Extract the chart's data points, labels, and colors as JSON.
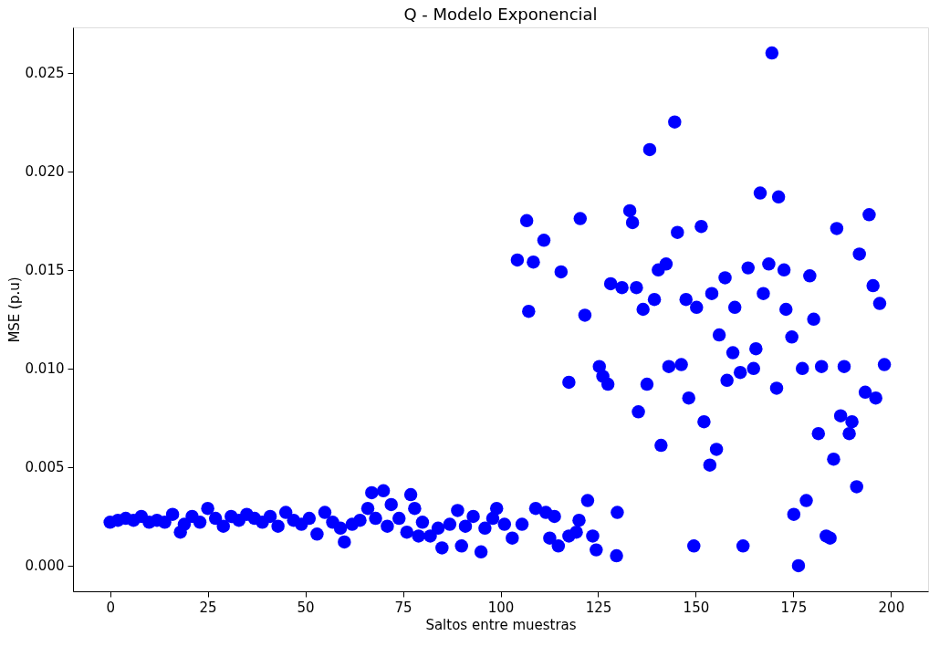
{
  "chart_data": {
    "type": "scatter",
    "title": "Q - Modelo Exponencial",
    "xlabel": "Saltos entre muestras",
    "ylabel": "MSE (p.u)",
    "xlim": [
      -9.5,
      209.5
    ],
    "ylim": [
      -0.0013,
      0.0273
    ],
    "xticks": [
      0,
      25,
      50,
      75,
      100,
      125,
      150,
      175,
      200
    ],
    "yticks": [
      {
        "value": 0,
        "label": "0.000"
      },
      {
        "value": 0.005,
        "label": "0.005"
      },
      {
        "value": 0.01,
        "label": "0.010"
      },
      {
        "value": 0.015,
        "label": "0.015"
      },
      {
        "value": 0.02,
        "label": "0.020"
      },
      {
        "value": 0.025,
        "label": "0.025"
      }
    ],
    "grid": false,
    "marker": "circle",
    "series": [
      {
        "color": "#0000ff",
        "x": [
          0,
          2,
          4,
          6,
          8,
          10,
          12,
          14,
          16,
          18,
          19,
          21,
          23,
          25,
          27,
          29,
          31,
          33,
          35,
          37,
          39,
          41,
          43,
          45,
          47,
          49,
          51,
          53,
          55,
          57,
          59,
          60,
          62,
          64,
          66,
          67,
          68,
          70,
          71,
          72,
          74,
          76,
          77,
          78,
          79,
          80,
          82,
          84,
          85,
          87,
          89,
          90,
          91,
          93,
          95,
          96,
          98,
          99,
          101,
          103,
          104.3,
          105.5,
          106.7,
          107.2,
          108.4,
          109,
          111.1,
          111.6,
          112.6,
          113.8,
          114.8,
          115.5,
          117.5,
          117.5,
          119.4,
          120.1,
          120.4,
          121.6,
          122.3,
          123.6,
          124.5,
          125.3,
          126.2,
          127.5,
          128.2,
          129.7,
          129.9,
          131.1,
          133.1,
          133.8,
          134.8,
          135.3,
          136.5,
          137.5,
          138.2,
          139.4,
          140.4,
          141.1,
          142.4,
          143.1,
          144.6,
          145.3,
          146.3,
          147.5,
          148.2,
          149.5,
          150.2,
          151.4,
          152.1,
          153.6,
          154.1,
          155.3,
          156,
          157.5,
          158,
          159.5,
          160,
          161.4,
          162.1,
          163.4,
          164.8,
          165.4,
          166.5,
          167.3,
          168.7,
          169.5,
          170.7,
          171.2,
          172.6,
          173.1,
          174.6,
          175.1,
          176.3,
          177.3,
          178.3,
          179.2,
          180.2,
          181.4,
          182.2,
          183.4,
          184.4,
          185.3,
          186.1,
          187.1,
          188,
          189.3,
          190,
          191.2,
          191.9,
          193.4,
          194.4,
          195.4,
          196.1,
          197.1,
          198.3
        ],
        "values": [
          0.0022,
          0.0023,
          0.0024,
          0.0023,
          0.0025,
          0.0022,
          0.0023,
          0.0022,
          0.0026,
          0.0017,
          0.0021,
          0.0025,
          0.0022,
          0.0029,
          0.0024,
          0.002,
          0.0025,
          0.0023,
          0.0026,
          0.0024,
          0.0022,
          0.0025,
          0.002,
          0.0027,
          0.0023,
          0.0021,
          0.0024,
          0.0016,
          0.0027,
          0.0022,
          0.0019,
          0.0012,
          0.0021,
          0.0023,
          0.0029,
          0.0037,
          0.0024,
          0.0038,
          0.002,
          0.0031,
          0.0024,
          0.0017,
          0.0036,
          0.0029,
          0.0015,
          0.0022,
          0.0015,
          0.0019,
          0.0009,
          0.0021,
          0.0028,
          0.001,
          0.002,
          0.0025,
          0.0007,
          0.0019,
          0.0024,
          0.0029,
          0.0021,
          0.0014,
          0.0155,
          0.0021,
          0.0175,
          0.0129,
          0.0154,
          0.0029,
          0.0165,
          0.0027,
          0.0014,
          0.0025,
          0.001,
          0.0149,
          0.0093,
          0.0015,
          0.0017,
          0.0023,
          0.0176,
          0.0127,
          0.0033,
          0.0015,
          0.0008,
          0.0101,
          0.0096,
          0.0092,
          0.0143,
          0.0005,
          0.0027,
          0.0141,
          0.018,
          0.0174,
          0.0141,
          0.0078,
          0.013,
          0.0092,
          0.0211,
          0.0135,
          0.015,
          0.0061,
          0.0153,
          0.0101,
          0.0225,
          0.0169,
          0.0102,
          0.0135,
          0.0085,
          0.001,
          0.0131,
          0.0172,
          0.0073,
          0.0051,
          0.0138,
          0.0059,
          0.0117,
          0.0146,
          0.0094,
          0.0108,
          0.0131,
          0.0098,
          0.001,
          0.0151,
          0.01,
          0.011,
          0.0189,
          0.0138,
          0.0153,
          0.026,
          0.009,
          0.0187,
          0.015,
          0.013,
          0.0116,
          0.0026,
          0.0,
          0.01,
          0.0033,
          0.0147,
          0.0125,
          0.0067,
          0.0101,
          0.0015,
          0.0014,
          0.0054,
          0.0171,
          0.0076,
          0.0101,
          0.0067,
          0.0073,
          0.004,
          0.0158,
          0.0088,
          0.0178,
          0.0142,
          0.0085,
          0.0133,
          0.0102
        ]
      }
    ]
  }
}
